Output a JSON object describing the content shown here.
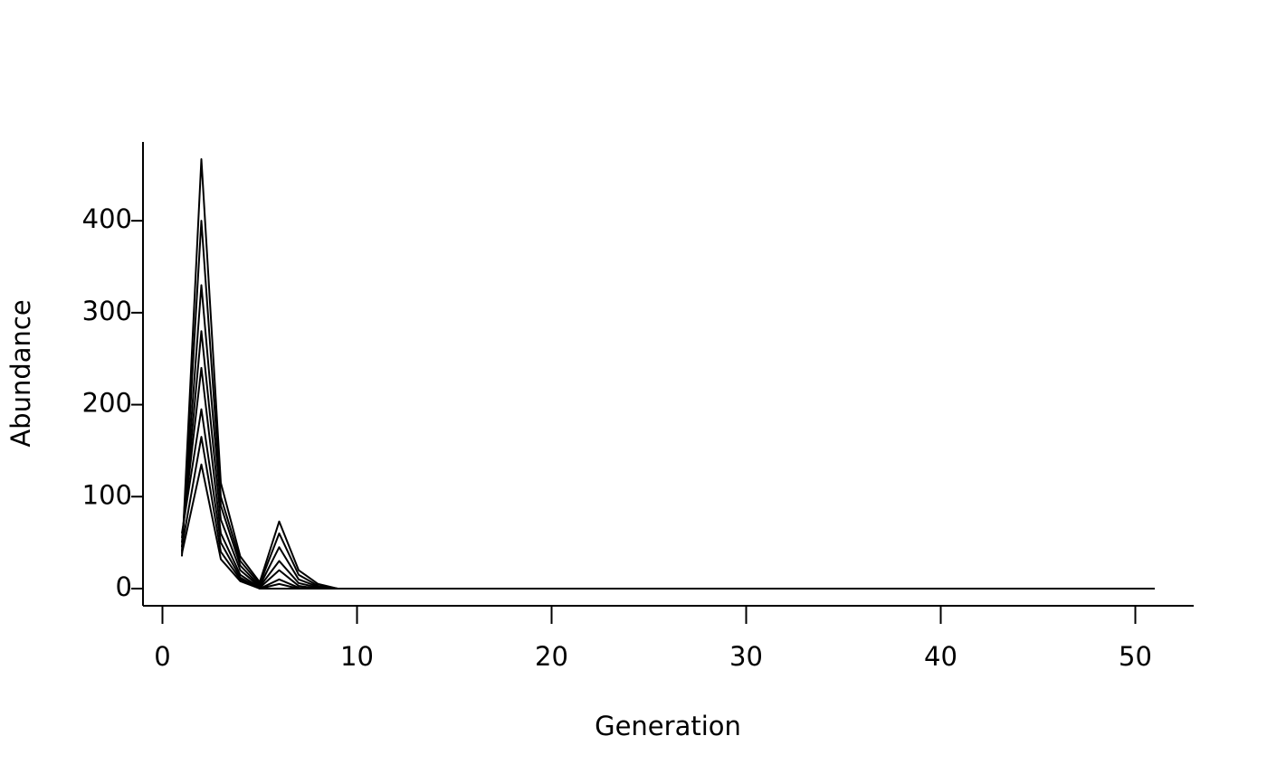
{
  "chart_data": {
    "type": "line",
    "xlabel": "Generation",
    "ylabel": "Abundance",
    "x": [
      1,
      2,
      3,
      4,
      5,
      6,
      7,
      8,
      9,
      10,
      11,
      12,
      13,
      14,
      15,
      16,
      17,
      18,
      19,
      20,
      21,
      22,
      23,
      24,
      25,
      26,
      27,
      28,
      29,
      30,
      31,
      32,
      33,
      34,
      35,
      36,
      37,
      38,
      39,
      40,
      41,
      42,
      43,
      44,
      45,
      46,
      47,
      48,
      49,
      50,
      51
    ],
    "series": [
      {
        "color": "#000000",
        "values": [
          35,
          467,
          115,
          35,
          7,
          73,
          20,
          5,
          0,
          0,
          0,
          0,
          0,
          0,
          0,
          0,
          0,
          0,
          0,
          0,
          0,
          0,
          0,
          0,
          0,
          0,
          0,
          0,
          0,
          0,
          0,
          0,
          0,
          0,
          0,
          0,
          0,
          0,
          0,
          0,
          0,
          0,
          0,
          0,
          0,
          0,
          0,
          0,
          0,
          0,
          0
        ]
      },
      {
        "color": "#000000",
        "values": [
          40,
          400,
          100,
          30,
          5,
          60,
          15,
          3,
          0,
          0,
          0,
          0,
          0,
          0,
          0,
          0,
          0,
          0,
          0,
          0,
          0,
          0,
          0,
          0,
          0,
          0,
          0,
          0,
          0,
          0,
          0,
          0,
          0,
          0,
          0,
          0,
          0,
          0,
          0,
          0,
          0,
          0,
          0,
          0,
          0,
          0,
          0,
          0,
          0,
          0,
          0
        ]
      },
      {
        "color": "#000000",
        "values": [
          45,
          330,
          90,
          25,
          3,
          45,
          10,
          2,
          0,
          0,
          0,
          0,
          0,
          0,
          0,
          0,
          0,
          0,
          0,
          0,
          0,
          0,
          0,
          0,
          0,
          0,
          0,
          0,
          0,
          0,
          0,
          0,
          0,
          0,
          0,
          0,
          0,
          0,
          0,
          0,
          0,
          0,
          0,
          0,
          0,
          0,
          0,
          0,
          0,
          0,
          0
        ]
      },
      {
        "color": "#000000",
        "values": [
          50,
          280,
          75,
          20,
          2,
          30,
          6,
          1,
          0,
          0,
          0,
          0,
          0,
          0,
          0,
          0,
          0,
          0,
          0,
          0,
          0,
          0,
          0,
          0,
          0,
          0,
          0,
          0,
          0,
          0,
          0,
          0,
          0,
          0,
          0,
          0,
          0,
          0,
          0,
          0,
          0,
          0,
          0,
          0,
          0,
          0,
          0,
          0,
          0,
          0,
          0
        ]
      },
      {
        "color": "#000000",
        "values": [
          55,
          240,
          60,
          15,
          1,
          20,
          3,
          0,
          0,
          0,
          0,
          0,
          0,
          0,
          0,
          0,
          0,
          0,
          0,
          0,
          0,
          0,
          0,
          0,
          0,
          0,
          0,
          0,
          0,
          0,
          0,
          0,
          0,
          0,
          0,
          0,
          0,
          0,
          0,
          0,
          0,
          0,
          0,
          0,
          0,
          0,
          0,
          0,
          0,
          0,
          0
        ]
      },
      {
        "color": "#000000",
        "values": [
          60,
          195,
          50,
          12,
          0,
          10,
          1,
          0,
          0,
          0,
          0,
          0,
          0,
          0,
          0,
          0,
          0,
          0,
          0,
          0,
          0,
          0,
          0,
          0,
          0,
          0,
          0,
          0,
          0,
          0,
          0,
          0,
          0,
          0,
          0,
          0,
          0,
          0,
          0,
          0,
          0,
          0,
          0,
          0,
          0,
          0,
          0,
          0,
          0,
          0,
          0
        ]
      },
      {
        "color": "#000000",
        "values": [
          45,
          165,
          40,
          10,
          0,
          5,
          0,
          0,
          0,
          0,
          0,
          0,
          0,
          0,
          0,
          0,
          0,
          0,
          0,
          0,
          0,
          0,
          0,
          0,
          0,
          0,
          0,
          0,
          0,
          0,
          0,
          0,
          0,
          0,
          0,
          0,
          0,
          0,
          0,
          0,
          0,
          0,
          0,
          0,
          0,
          0,
          0,
          0,
          0,
          0,
          0
        ]
      },
      {
        "color": "#000000",
        "values": [
          38,
          135,
          32,
          8,
          0,
          0,
          0,
          0,
          0,
          0,
          0,
          0,
          0,
          0,
          0,
          0,
          0,
          0,
          0,
          0,
          0,
          0,
          0,
          0,
          0,
          0,
          0,
          0,
          0,
          0,
          0,
          0,
          0,
          0,
          0,
          0,
          0,
          0,
          0,
          0,
          0,
          0,
          0,
          0,
          0,
          0,
          0,
          0,
          0,
          0,
          0
        ]
      }
    ],
    "xlim": [
      -1,
      53
    ],
    "xticks": [
      0,
      10,
      20,
      30,
      40,
      50
    ],
    "ylim": [
      -18.7,
      485.7
    ],
    "yticks": [
      0,
      100,
      200,
      300,
      400
    ]
  }
}
